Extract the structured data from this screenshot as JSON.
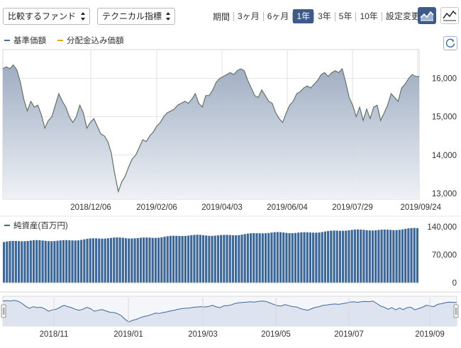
{
  "toolbar": {
    "fund_select": "比較するファンド",
    "tech_select": "テクニカル指標",
    "period_label": "期間",
    "periods": [
      "3ヶ月",
      "6ヶ月",
      "1年",
      "3年",
      "5年",
      "10年"
    ],
    "active_period": "1年",
    "settings_label": "設定変更",
    "chart_icons": [
      "area-chart-icon",
      "line-chart-icon"
    ]
  },
  "legend": {
    "nav": "基準価額",
    "nav_color": "#4a6fa0",
    "dividend": "分配金込み価額",
    "dividend_color": "#e0a800"
  },
  "volume_legend": "純資産(百万円)",
  "chart_data": [
    {
      "type": "area",
      "x_tick_labels": [
        "2018/12/06",
        "2019/02/06",
        "2019/04/03",
        "2019/06/04",
        "2019/07/29",
        "2019/09/24"
      ],
      "y_tick_labels": [
        "16,000",
        "15,000",
        "14,000",
        "13,000"
      ],
      "ylim": [
        12850,
        16750
      ],
      "series": [
        {
          "name": "基準価額",
          "color": "#4a6fa0",
          "values": [
            16250,
            16300,
            16250,
            16350,
            16220,
            15900,
            15450,
            15150,
            15400,
            15250,
            15300,
            15050,
            14700,
            14900,
            15000,
            15300,
            15600,
            15400,
            15250,
            15000,
            14850,
            15000,
            15300,
            15100,
            14700,
            14850,
            14950,
            14750,
            14550,
            14500,
            14350,
            14050,
            13500,
            13050,
            13300,
            13450,
            13700,
            13900,
            14000,
            14200,
            14400,
            14350,
            14500,
            14600,
            14750,
            14850,
            15000,
            15100,
            15150,
            15200,
            15300,
            15350,
            15400,
            15350,
            15450,
            15600,
            15350,
            15250,
            15550,
            15550,
            15700,
            15900,
            16000,
            16050,
            16100,
            16150,
            16100,
            16200,
            16250,
            16200,
            15950,
            15750,
            15550,
            15500,
            15700,
            15550,
            15400,
            15350,
            15100,
            14950,
            14850,
            15100,
            15300,
            15400,
            15600,
            15650,
            15750,
            15800,
            15750,
            15850,
            15950,
            16100,
            16150,
            16050,
            16150,
            16200,
            16150,
            16250,
            15900,
            15500,
            15300,
            15000,
            15250,
            14900,
            15200,
            14950,
            15250,
            15300,
            14900,
            15100,
            15300,
            15600,
            15500,
            15400,
            15750,
            15850,
            16000,
            16100,
            16050,
            16050
          ],
          "note": "",
          "interp": ""
        },
        {
          "name": "分配金込み価額",
          "color": "#e0a800",
          "values": [
            16250,
            16300,
            16250,
            16350,
            16220,
            15900,
            15450,
            15150,
            15400,
            15250,
            15300,
            15050,
            14700,
            14900,
            15000,
            15300,
            15600,
            15400,
            15250,
            15000,
            14850,
            15000,
            15300,
            15100,
            14700,
            14850,
            14950,
            14750,
            14550,
            14500,
            14350,
            14050,
            13500,
            13050,
            13300,
            13450,
            13700,
            13900,
            14000,
            14200,
            14400,
            14350,
            14500,
            14600,
            14750,
            14850,
            15000,
            15100,
            15150,
            15200,
            15300,
            15350,
            15400,
            15350,
            15450,
            15600,
            15350,
            15250,
            15550,
            15550,
            15700,
            15900,
            16000,
            16050,
            16100,
            16150,
            16100,
            16200,
            16250,
            16200,
            15950,
            15750,
            15550,
            15500,
            15700,
            15550,
            15400,
            15350,
            15100,
            14950,
            14850,
            15100,
            15300,
            15400,
            15600,
            15650,
            15750,
            15800,
            15750,
            15850,
            15950,
            16100,
            16150,
            16050,
            16150,
            16200,
            16150,
            16250,
            15900,
            15500,
            15300,
            15000,
            15250,
            14900,
            15200,
            14950,
            15250,
            15300,
            14900,
            15100,
            15300,
            15600,
            15500,
            15400,
            15750,
            15850,
            16000,
            16100,
            16050,
            16050
          ]
        }
      ]
    },
    {
      "type": "bar",
      "name": "純資産(百万円)",
      "y_tick_labels": [
        "140,000",
        "70,000",
        "0"
      ],
      "ylim": [
        0,
        140000
      ],
      "start": 102000,
      "end": 136000
    },
    {
      "type": "line",
      "name": "navigator",
      "x_tick_labels": [
        "2018/11",
        "2019/01",
        "2019/03",
        "2019/05",
        "2019/07",
        "2019/09"
      ]
    }
  ]
}
